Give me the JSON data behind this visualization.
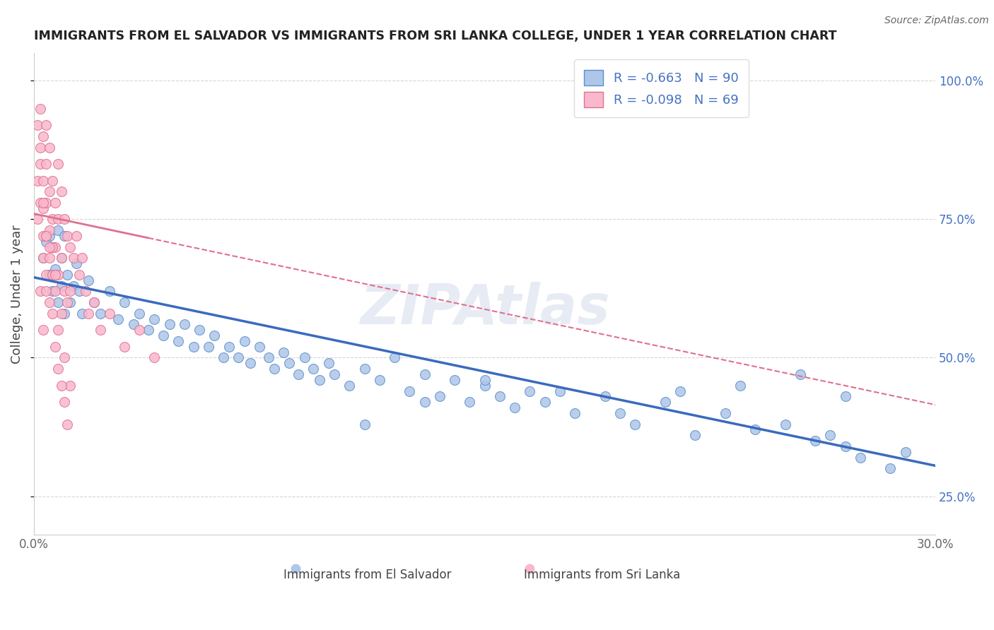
{
  "title": "IMMIGRANTS FROM EL SALVADOR VS IMMIGRANTS FROM SRI LANKA COLLEGE, UNDER 1 YEAR CORRELATION CHART",
  "source_text": "Source: ZipAtlas.com",
  "xlabel_blue": "Immigrants from El Salvador",
  "xlabel_pink": "Immigrants from Sri Lanka",
  "ylabel": "College, Under 1 year",
  "xlim": [
    0.0,
    0.3
  ],
  "ylim": [
    0.18,
    1.05
  ],
  "ytick_vals": [
    0.25,
    0.5,
    0.75,
    1.0
  ],
  "ytick_labels": [
    "25.0%",
    "50.0%",
    "75.0%",
    "100.0%"
  ],
  "xtick_vals": [
    0.0,
    0.3
  ],
  "xtick_labels": [
    "0.0%",
    "30.0%"
  ],
  "r_blue": -0.663,
  "n_blue": 90,
  "r_pink": -0.098,
  "n_pink": 69,
  "color_blue": "#aec6e8",
  "color_pink": "#f9b8cc",
  "edge_blue": "#5b8fcc",
  "edge_pink": "#e07090",
  "line_blue": "#3a6abf",
  "line_pink": "#e07090",
  "watermark": "ZIPAtlas",
  "background": "#ffffff",
  "grid_color": "#cccccc",
  "blue_x": [
    0.003,
    0.004,
    0.005,
    0.005,
    0.006,
    0.006,
    0.007,
    0.008,
    0.008,
    0.009,
    0.009,
    0.01,
    0.01,
    0.011,
    0.012,
    0.013,
    0.014,
    0.015,
    0.016,
    0.018,
    0.02,
    0.022,
    0.025,
    0.028,
    0.03,
    0.033,
    0.035,
    0.038,
    0.04,
    0.043,
    0.045,
    0.048,
    0.05,
    0.053,
    0.055,
    0.058,
    0.06,
    0.063,
    0.065,
    0.068,
    0.07,
    0.072,
    0.075,
    0.078,
    0.08,
    0.083,
    0.085,
    0.088,
    0.09,
    0.093,
    0.095,
    0.098,
    0.1,
    0.105,
    0.11,
    0.115,
    0.12,
    0.125,
    0.13,
    0.135,
    0.14,
    0.145,
    0.15,
    0.155,
    0.16,
    0.165,
    0.17,
    0.18,
    0.19,
    0.2,
    0.21,
    0.22,
    0.23,
    0.24,
    0.25,
    0.26,
    0.265,
    0.27,
    0.275,
    0.285,
    0.11,
    0.13,
    0.15,
    0.175,
    0.195,
    0.215,
    0.235,
    0.255,
    0.27,
    0.29
  ],
  "blue_y": [
    0.68,
    0.71,
    0.65,
    0.72,
    0.7,
    0.62,
    0.66,
    0.73,
    0.6,
    0.68,
    0.63,
    0.72,
    0.58,
    0.65,
    0.6,
    0.63,
    0.67,
    0.62,
    0.58,
    0.64,
    0.6,
    0.58,
    0.62,
    0.57,
    0.6,
    0.56,
    0.58,
    0.55,
    0.57,
    0.54,
    0.56,
    0.53,
    0.56,
    0.52,
    0.55,
    0.52,
    0.54,
    0.5,
    0.52,
    0.5,
    0.53,
    0.49,
    0.52,
    0.5,
    0.48,
    0.51,
    0.49,
    0.47,
    0.5,
    0.48,
    0.46,
    0.49,
    0.47,
    0.45,
    0.48,
    0.46,
    0.5,
    0.44,
    0.47,
    0.43,
    0.46,
    0.42,
    0.45,
    0.43,
    0.41,
    0.44,
    0.42,
    0.4,
    0.43,
    0.38,
    0.42,
    0.36,
    0.4,
    0.37,
    0.38,
    0.35,
    0.36,
    0.34,
    0.32,
    0.3,
    0.38,
    0.42,
    0.46,
    0.44,
    0.4,
    0.44,
    0.45,
    0.47,
    0.43,
    0.33
  ],
  "pink_x": [
    0.001,
    0.001,
    0.001,
    0.002,
    0.002,
    0.002,
    0.002,
    0.003,
    0.003,
    0.003,
    0.003,
    0.003,
    0.004,
    0.004,
    0.004,
    0.004,
    0.004,
    0.005,
    0.005,
    0.005,
    0.005,
    0.006,
    0.006,
    0.006,
    0.007,
    0.007,
    0.007,
    0.008,
    0.008,
    0.008,
    0.009,
    0.009,
    0.01,
    0.01,
    0.011,
    0.011,
    0.012,
    0.012,
    0.013,
    0.014,
    0.015,
    0.016,
    0.017,
    0.018,
    0.02,
    0.022,
    0.025,
    0.03,
    0.035,
    0.04,
    0.002,
    0.003,
    0.004,
    0.005,
    0.006,
    0.007,
    0.008,
    0.009,
    0.01,
    0.012,
    0.003,
    0.004,
    0.005,
    0.006,
    0.007,
    0.008,
    0.009,
    0.01,
    0.011
  ],
  "pink_y": [
    0.92,
    0.82,
    0.75,
    0.88,
    0.95,
    0.78,
    0.85,
    0.82,
    0.9,
    0.72,
    0.77,
    0.68,
    0.85,
    0.92,
    0.78,
    0.72,
    0.65,
    0.88,
    0.8,
    0.73,
    0.68,
    0.82,
    0.75,
    0.65,
    0.78,
    0.7,
    0.62,
    0.85,
    0.75,
    0.65,
    0.8,
    0.68,
    0.75,
    0.62,
    0.72,
    0.6,
    0.7,
    0.62,
    0.68,
    0.72,
    0.65,
    0.68,
    0.62,
    0.58,
    0.6,
    0.55,
    0.58,
    0.52,
    0.55,
    0.5,
    0.62,
    0.78,
    0.72,
    0.6,
    0.7,
    0.65,
    0.55,
    0.58,
    0.5,
    0.45,
    0.55,
    0.62,
    0.7,
    0.58,
    0.52,
    0.48,
    0.45,
    0.42,
    0.38
  ],
  "blue_trendline_x0": 0.0,
  "blue_trendline_y0": 0.645,
  "blue_trendline_x1": 0.3,
  "blue_trendline_y1": 0.305,
  "pink_trendline_x0": 0.0,
  "pink_trendline_y0": 0.76,
  "pink_trendline_x1": 0.3,
  "pink_trendline_y1": 0.415
}
